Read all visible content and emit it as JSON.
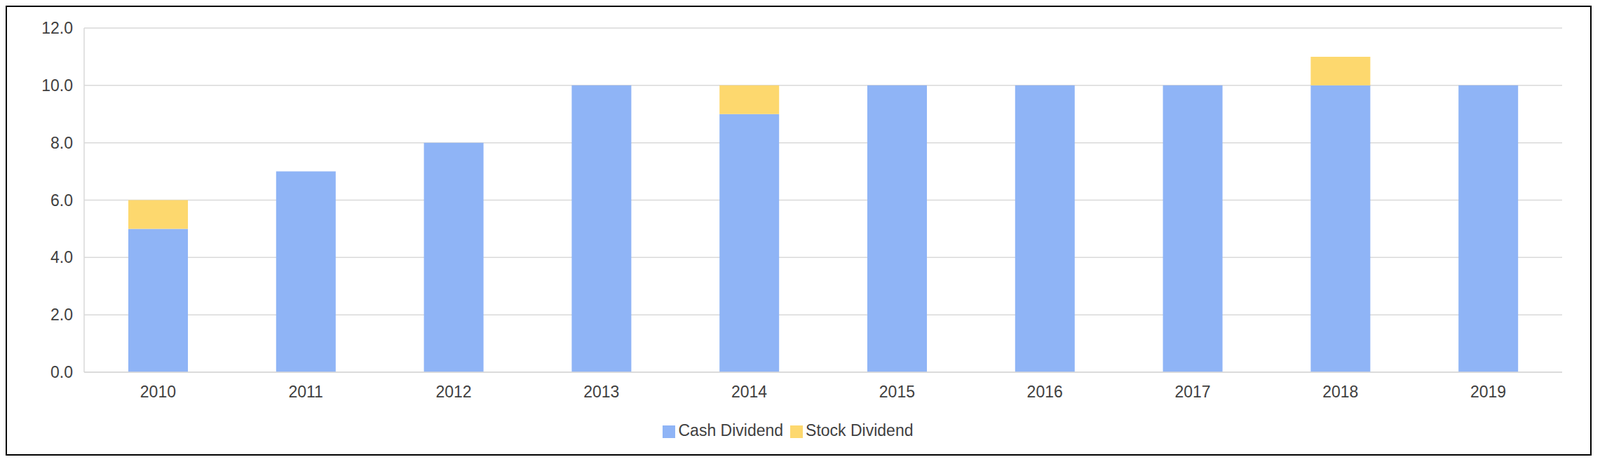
{
  "chart_data": {
    "type": "bar",
    "stacked": true,
    "grid": true,
    "legend": "bottom",
    "categories": [
      "2010",
      "2011",
      "2012",
      "2013",
      "2014",
      "2015",
      "2016",
      "2017",
      "2018",
      "2019"
    ],
    "series": [
      {
        "name": "Cash Dividend",
        "color": "#8fb4f6",
        "values": [
          5,
          7,
          8,
          10,
          9,
          10,
          10,
          10,
          10,
          10
        ]
      },
      {
        "name": "Stock Dividend",
        "color": "#fdd86e",
        "values": [
          1,
          0,
          0,
          0,
          1,
          0,
          0,
          0,
          1,
          0
        ]
      }
    ],
    "ylim": [
      0,
      12
    ],
    "yticks": [
      {
        "value": 0,
        "label": "0.0"
      },
      {
        "value": 2,
        "label": "2.0"
      },
      {
        "value": 4,
        "label": "4.0"
      },
      {
        "value": 6,
        "label": "6.0"
      },
      {
        "value": 8,
        "label": "8.0"
      },
      {
        "value": 10,
        "label": "10.0"
      },
      {
        "value": 12,
        "label": "12.0"
      }
    ]
  }
}
